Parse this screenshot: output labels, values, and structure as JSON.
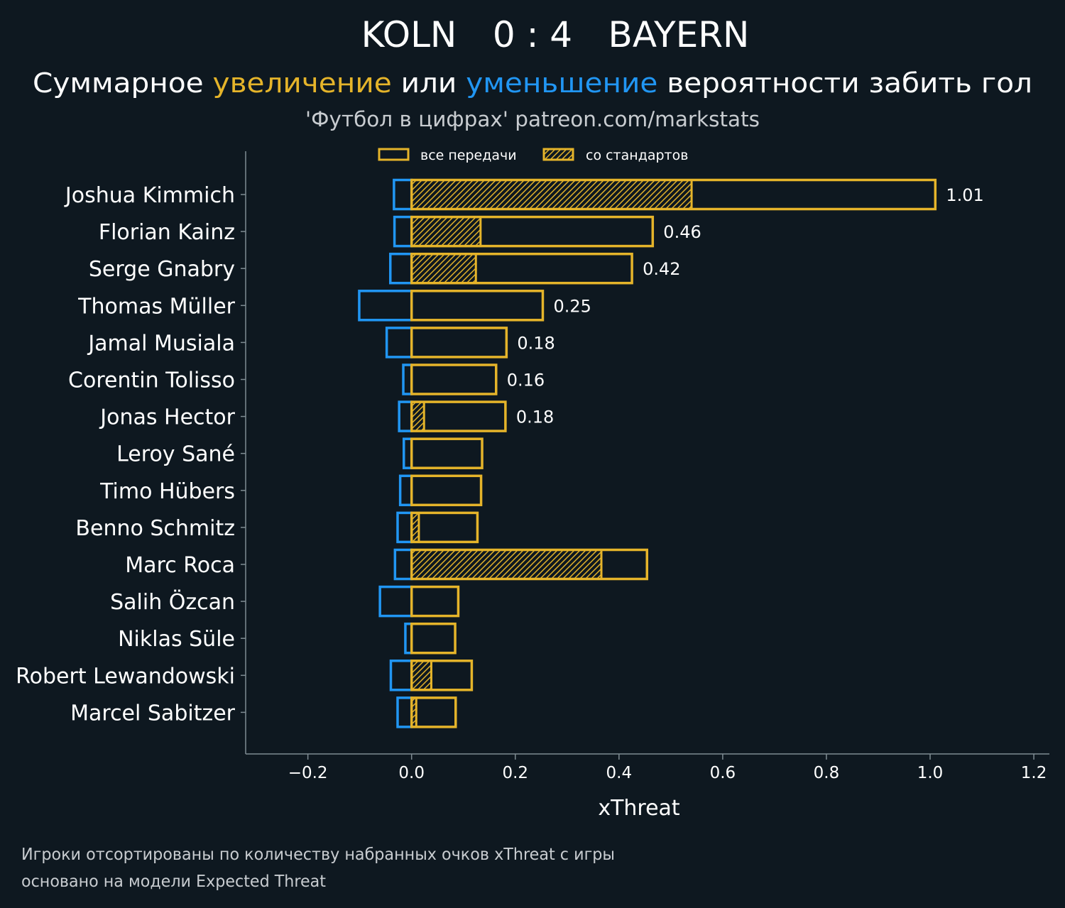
{
  "header": {
    "home_team": "KOLN",
    "score": "0 : 4",
    "away_team": "BAYERN",
    "subtitle_part1": "Суммарное ",
    "subtitle_increase": "увеличение",
    "subtitle_part2": " или ",
    "subtitle_decrease": "уменьшение",
    "subtitle_part3": " вероятности забить гол",
    "source": "'Футбол в цифрах' patreon.com/markstats"
  },
  "footer": {
    "line1": "Игроки отсортированы по количеству набранных очков xThreat с игры",
    "line2": "основано на модели Expected Threat"
  },
  "colors": {
    "background": "#0e1820",
    "increase": "#e5b42a",
    "decrease": "#2196f3",
    "axis": "#7f8c93",
    "subtext": "#c8ccd0"
  },
  "chart_data": {
    "type": "bar",
    "orientation": "horizontal",
    "xlabel": "xThreat",
    "xlim": [
      -0.32,
      1.23
    ],
    "xticks": [
      -0.2,
      0.0,
      0.2,
      0.4,
      0.6,
      0.8,
      1.0,
      1.2
    ],
    "xtick_labels": [
      "−0.2",
      "0.0",
      "0.2",
      "0.4",
      "0.6",
      "0.8",
      "1.0",
      "1.2"
    ],
    "legend": {
      "position": "top",
      "all_passes": "все передачи",
      "set_pieces": "со стандартов"
    },
    "categories": [
      "Joshua Kimmich",
      "Florian Kainz",
      "Serge Gnabry",
      "Thomas Müller",
      "Jamal Musiala",
      "Corentin Tolisso",
      "Jonas Hector",
      "Leroy Sané",
      "Timo Hübers",
      "Benno Schmitz",
      "Marc Roca",
      "Salih Özcan",
      "Niklas Süle",
      "Robert Lewandowski",
      "Marcel Sabitzer"
    ],
    "series": [
      {
        "name": "увеличение (все передачи)",
        "values": [
          1.01,
          0.465,
          0.425,
          0.253,
          0.183,
          0.163,
          0.181,
          0.136,
          0.134,
          0.127,
          0.454,
          0.09,
          0.084,
          0.116,
          0.085
        ]
      },
      {
        "name": "увеличение (со стандартов)",
        "values": [
          0.54,
          0.133,
          0.124,
          0,
          0,
          0,
          0.024,
          0,
          0,
          0.014,
          0.366,
          0,
          0,
          0.038,
          0.009
        ]
      },
      {
        "name": "уменьшение",
        "values": [
          -0.034,
          -0.033,
          -0.041,
          -0.101,
          -0.048,
          -0.016,
          -0.024,
          -0.015,
          -0.022,
          -0.027,
          -0.032,
          -0.061,
          -0.012,
          -0.04,
          -0.027
        ]
      }
    ],
    "value_labels": [
      "1.01",
      "0.46",
      "0.42",
      "0.25",
      "0.18",
      "0.16",
      "0.18",
      "",
      "",
      "",
      "",
      "",
      "",
      "",
      ""
    ]
  }
}
